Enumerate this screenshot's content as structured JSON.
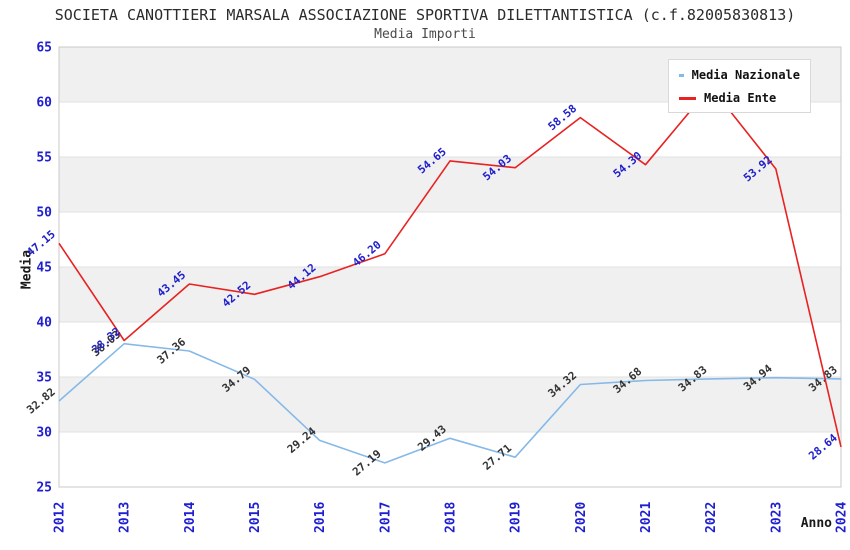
{
  "header": {
    "title": "SOCIETA CANOTTIERI MARSALA ASSOCIAZIONE SPORTIVA DILETTANTISTICA (c.f.82005830813)",
    "subtitle": "Media Importi"
  },
  "colors": {
    "tick_label": "#1f1fd1",
    "band_gray": "#f0f0f0",
    "gridline": "#e2e2e2",
    "plot_border": "#c9c9c9",
    "nazionale_line": "#85b9e8",
    "ente_line": "#e82222",
    "nazionale_data_label": "#333333",
    "ente_data_label": "#2020cc",
    "axis_title": "#1a1a1a"
  },
  "chart_data": {
    "type": "line",
    "title": "SOCIETA CANOTTIERI MARSALA ASSOCIAZIONE SPORTIVA DILETTANTISTICA (c.f.82005830813)",
    "subtitle": "Media Importi",
    "xlabel": "Anno",
    "ylabel": "Media",
    "ylim": [
      25,
      65
    ],
    "ytick_step": 5,
    "grid": true,
    "band_fill_ranges": [
      [
        60,
        65
      ],
      [
        50,
        55
      ],
      [
        40,
        45
      ],
      [
        30,
        35
      ]
    ],
    "legend_position": "top-right-inside",
    "categories": [
      "2012",
      "2013",
      "2014",
      "2015",
      "2016",
      "2017",
      "2018",
      "2019",
      "2020",
      "2021",
      "2022",
      "2023",
      "2024"
    ],
    "series": [
      {
        "name": "Media Nazionale",
        "color": "#85b9e8",
        "label_color": "#333333",
        "values": [
          32.82,
          38.03,
          37.36,
          34.79,
          29.24,
          27.19,
          29.43,
          27.71,
          34.32,
          34.68,
          34.83,
          34.94,
          34.83
        ],
        "labels": [
          "32.82",
          "38.03",
          "37.36",
          "34.79",
          "29.24",
          "27.19",
          "29.43",
          "27.71",
          "34.32",
          "34.68",
          "34.83",
          "34.94",
          "34.83"
        ]
      },
      {
        "name": "Media Ente",
        "color": "#e82222",
        "label_color": "#2020cc",
        "values": [
          47.15,
          38.32,
          43.45,
          42.52,
          44.12,
          46.2,
          54.65,
          54.03,
          58.58,
          54.3,
          61.4,
          53.92,
          28.64
        ],
        "labels": [
          "47.15",
          "38.32",
          "43.45",
          "42.52",
          "44.12",
          "46.20",
          "54.65",
          "54.03",
          "58.58",
          "54.30",
          "",
          "53.92",
          "28.64"
        ]
      }
    ]
  }
}
